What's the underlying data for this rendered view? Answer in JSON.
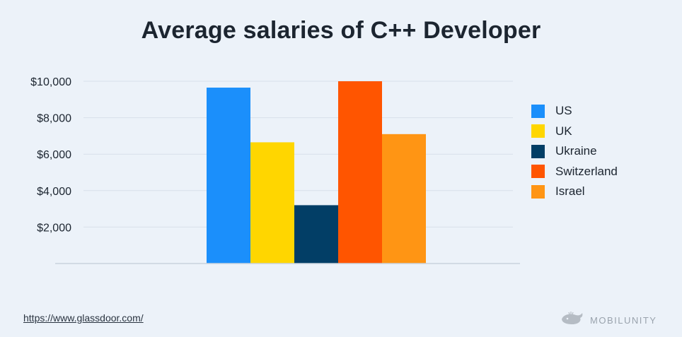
{
  "page": {
    "title": "Average salaries of C++ Developer",
    "source": "https://www.glassdoor.com/",
    "brand": "MOBILUNITY"
  },
  "chart_data": {
    "type": "bar",
    "title": "Average salaries of C++ Developer",
    "xlabel": "",
    "ylabel": "",
    "ylim": [
      0,
      10000
    ],
    "yticks": [
      2000,
      4000,
      6000,
      8000,
      10000
    ],
    "ytick_labels": [
      "$2,000",
      "$4,000",
      "$6,000",
      "$8,000",
      "$10,000"
    ],
    "grid": true,
    "legend_position": "right",
    "series": [
      {
        "name": "US",
        "value": 9650,
        "color": "#1b8ffb"
      },
      {
        "name": "UK",
        "value": 6650,
        "color": "#ffd600"
      },
      {
        "name": "Ukraine",
        "value": 3200,
        "color": "#023e66"
      },
      {
        "name": "Switzerland",
        "value": 10000,
        "color": "#ff5500"
      },
      {
        "name": "Israel",
        "value": 7100,
        "color": "#ff9514"
      }
    ]
  },
  "icons": {
    "brand": "whale-logo-icon"
  }
}
